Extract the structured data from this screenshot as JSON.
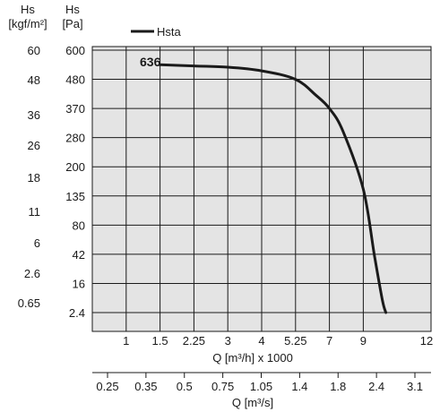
{
  "chart_data": {
    "type": "line",
    "legend": {
      "label": "Hsta",
      "placement": "top-left"
    },
    "left_axes": [
      {
        "unit_name": "Hs",
        "unit": "[kgf/m²]",
        "ticks": [
          "60",
          "48",
          "36",
          "26",
          "18",
          "11",
          "6",
          "2.6",
          "0.65"
        ]
      },
      {
        "unit_name": "Hs",
        "unit": "[Pa]",
        "ticks": [
          "600",
          "480",
          "370",
          "280",
          "200",
          "135",
          "80",
          "42",
          "16",
          "2.4"
        ]
      }
    ],
    "x_axis": {
      "label": "Q [m³/h] x 1000",
      "ticks": [
        "1",
        "1.5",
        "2.25",
        "3",
        "4",
        "5.25",
        "7",
        "9",
        "12"
      ]
    },
    "x_axis_secondary": {
      "label": "Q [m³/s]",
      "ticks": [
        "0.25",
        "0.35",
        "0.5",
        "0.75",
        "1.05",
        "1.4",
        "1.8",
        "2.4",
        "3.1"
      ]
    },
    "grid": true,
    "series": [
      {
        "name": "Hsta",
        "annotation": "636",
        "x": [
          1.5,
          2.25,
          3,
          4,
          5.25,
          6.3,
          7,
          7.8,
          9,
          10,
          10.7,
          11
        ],
        "y": [
          540,
          535,
          530,
          515,
          480,
          420,
          370,
          300,
          150,
          40,
          8,
          2.4
        ]
      }
    ]
  }
}
